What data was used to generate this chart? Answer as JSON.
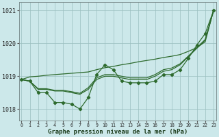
{
  "x": [
    0,
    1,
    2,
    3,
    4,
    5,
    6,
    7,
    8,
    9,
    10,
    11,
    12,
    13,
    14,
    15,
    16,
    17,
    18,
    19,
    20,
    21,
    22,
    23
  ],
  "line_zigzag": [
    1018.9,
    1018.85,
    1018.5,
    1018.5,
    1018.2,
    1018.2,
    1018.15,
    1018.0,
    1018.35,
    1019.05,
    1019.35,
    1019.2,
    1018.85,
    1018.8,
    1018.8,
    1018.8,
    1018.85,
    1019.05,
    1019.05,
    1019.2,
    1019.55,
    1019.95,
    1020.3,
    1021.0
  ],
  "line_smooth1": [
    1018.9,
    1018.85,
    1018.6,
    1018.6,
    1018.55,
    1018.55,
    1018.5,
    1018.45,
    1018.6,
    1018.9,
    1019.0,
    1019.0,
    1018.95,
    1018.9,
    1018.9,
    1018.9,
    1019.0,
    1019.15,
    1019.2,
    1019.35,
    1019.6,
    1019.85,
    1020.1,
    1021.0
  ],
  "line_smooth2": [
    1018.9,
    1018.85,
    1018.62,
    1018.62,
    1018.57,
    1018.57,
    1018.53,
    1018.48,
    1018.65,
    1018.95,
    1019.05,
    1019.05,
    1019.0,
    1018.95,
    1018.95,
    1018.95,
    1019.05,
    1019.2,
    1019.25,
    1019.38,
    1019.62,
    1019.87,
    1020.12,
    1021.0
  ],
  "line_straight": [
    1018.9,
    1018.98,
    1019.0,
    1019.03,
    1019.05,
    1019.07,
    1019.09,
    1019.11,
    1019.13,
    1019.2,
    1019.26,
    1019.3,
    1019.35,
    1019.39,
    1019.44,
    1019.48,
    1019.52,
    1019.57,
    1019.61,
    1019.66,
    1019.76,
    1019.87,
    1020.05,
    1021.0
  ],
  "bg_color": "#cce8ea",
  "grid_color": "#9bbfbf",
  "line_color": "#2d6a2d",
  "ylabel_values": [
    1018,
    1019,
    1020,
    1021
  ],
  "xlabel_values": [
    0,
    1,
    2,
    3,
    4,
    5,
    6,
    7,
    8,
    9,
    10,
    11,
    12,
    13,
    14,
    15,
    16,
    17,
    18,
    19,
    20,
    21,
    22,
    23
  ],
  "xlabel": "Graphe pression niveau de la mer (hPa)",
  "ylim": [
    1017.65,
    1021.25
  ],
  "xlim": [
    -0.3,
    23.3
  ]
}
